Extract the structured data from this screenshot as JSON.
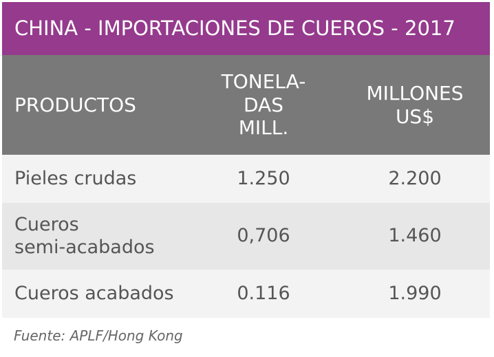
{
  "header": {
    "title": "CHINA - IMPORTACIONES DE CUEROS - 2017"
  },
  "table": {
    "columns": [
      "PRODUCTOS",
      "TONELA-\nDAS\nMILL.",
      "MILLONES\nUS$"
    ],
    "rows": [
      [
        "Pieles crudas",
        "1.250",
        "2.200"
      ],
      [
        "Cueros\nsemi-acabados",
        "0,706",
        "1.460"
      ],
      [
        "Cueros acabados",
        "0.116",
        "1.990"
      ]
    ]
  },
  "footer": {
    "source": "Fuente: APLF/Hong Kong"
  }
}
